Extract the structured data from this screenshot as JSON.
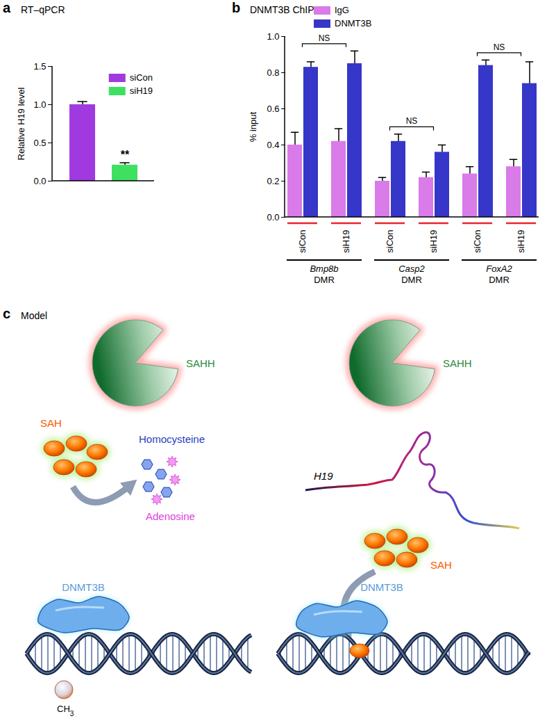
{
  "chart_data": [
    {
      "panel": "a",
      "title": "RT–qPCR",
      "type": "bar",
      "categories": [
        "siCon",
        "siH19"
      ],
      "values": [
        1.0,
        0.21
      ],
      "errors": [
        0.04,
        0.03
      ],
      "colors": [
        "#a03ae0",
        "#3ee060"
      ],
      "ylabel": "Relative H19 level",
      "ylim": [
        0,
        1.5
      ],
      "yticks": [
        {
          "value": 0,
          "label": "0.0"
        },
        0.5,
        {
          "value": 1,
          "label": "1.0"
        },
        1.5
      ],
      "grid": false,
      "legend": "top-right",
      "tick_labels": "y",
      "annotations": [
        {
          "text": "**",
          "category": "siH19"
        }
      ]
    },
    {
      "panel": "b",
      "title": "DNMT3B ChIP",
      "type": "bar",
      "categories": [
        "siCon",
        "siH19",
        "siCon",
        "siH19",
        "siCon",
        "siH19"
      ],
      "groups": [
        {
          "name": "Bmp8b",
          "label": "DMR"
        },
        {
          "name": "Casp2",
          "label": "DMR"
        },
        {
          "name": "FoxA2",
          "label": "DMR"
        }
      ],
      "series": [
        {
          "name": "IgG",
          "color": "#d97be8",
          "values": [
            0.4,
            0.42,
            0.2,
            0.22,
            0.24,
            0.28
          ],
          "errors": [
            0.07,
            0.07,
            0.02,
            0.03,
            0.04,
            0.04
          ]
        },
        {
          "name": "DNMT3B",
          "color": "#3636c8",
          "values": [
            0.83,
            0.85,
            0.42,
            0.36,
            0.84,
            0.74
          ],
          "errors": [
            0.03,
            0.07,
            0.04,
            0.04,
            0.03,
            0.12
          ]
        }
      ],
      "ylabel": "% input",
      "ylim": [
        0,
        1.0
      ],
      "yticks": [
        {
          "value": 0,
          "label": "0.0"
        },
        0.2,
        0.4,
        0.6,
        0.8,
        {
          "value": 1,
          "label": "1.0"
        }
      ],
      "grid": false,
      "legend": "top-left",
      "annotations": [
        {
          "text": "NS",
          "categories": [
            0,
            1
          ]
        },
        {
          "text": "NS",
          "categories": [
            2,
            3
          ]
        },
        {
          "text": "NS",
          "categories": [
            4,
            5
          ]
        }
      ]
    }
  ],
  "diagram": {
    "panel": "c",
    "title": "Model",
    "left": {
      "enzyme": "SAHH",
      "substrate": "SAH",
      "products": [
        "Homocysteine",
        "Adenosine"
      ],
      "protein": "DNMT3B",
      "methyl": {
        "text": "CH",
        "subscript": "3"
      }
    },
    "right": {
      "enzyme": "SAHH",
      "rna": "H19",
      "substrate": "SAH",
      "protein": "DNMT3B"
    }
  }
}
